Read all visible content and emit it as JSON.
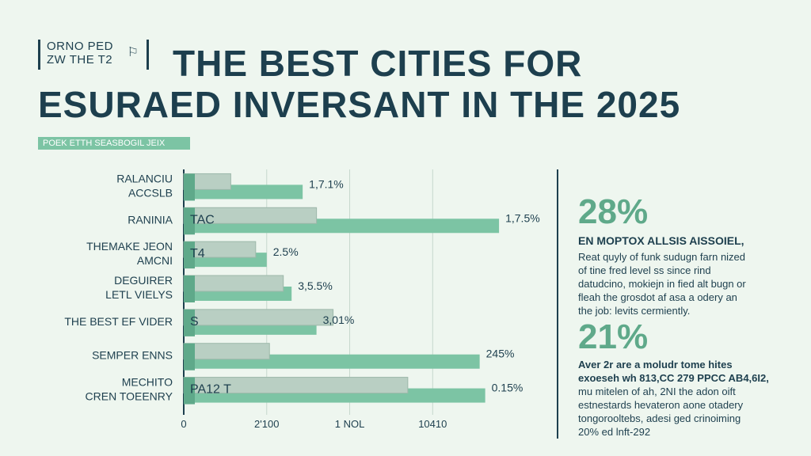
{
  "logo": {
    "line1": "ORNO PED",
    "line2": "ZW THE T2",
    "icon": "flag-icon"
  },
  "header": {
    "title_line1": "THE BEST CITIES FOR",
    "title_line2": "ESURAED INVERSANT IN THE 2025",
    "subtitle": "POEK ETTH SEASBOGIL JEIX"
  },
  "colors": {
    "accent": "#7cc4a4",
    "dark": "#1d3f4e",
    "bar_dark": "#5fa98a",
    "bar_gray": "#b9cfc3"
  },
  "chart_data": {
    "type": "bar",
    "orientation": "horizontal",
    "categories": [
      [
        "RALANCIU",
        "ACCSLB"
      ],
      [
        "RANINIA"
      ],
      [
        "THEMAKE JEON",
        "AMCNI"
      ],
      [
        "DEGUIRER",
        "LETL VIELYS"
      ],
      [
        "THE BEST EF VIDER"
      ],
      [
        "SEMPER ENNS"
      ],
      [
        "MECHITO",
        "CREN TOEENRY"
      ]
    ],
    "series": [
      {
        "values": [
          2150,
          5700,
          1500,
          1950,
          2400,
          5350,
          5450
        ]
      },
      {
        "values": [
          850,
          2400,
          1300,
          1800,
          2700,
          1550,
          4050
        ]
      }
    ],
    "inner_labels": [
      "",
      "TAC",
      "T4",
      "",
      "S",
      "",
      "PA12 T"
    ],
    "value_labels": [
      "1,7.1%",
      "1,7.5%",
      "2.5%",
      "3,5.5%",
      "3,01%",
      "245%",
      "0.15%"
    ],
    "xticks": [
      {
        "value": 0,
        "label": "0"
      },
      {
        "value": 1500,
        "label": "2'100"
      },
      {
        "value": 3000,
        "label": "1 NOL"
      },
      {
        "value": 4500,
        "label": "10410"
      }
    ],
    "xlim": [
      0,
      6300
    ],
    "grid": true
  },
  "side": {
    "stat1": {
      "value": "28%",
      "heading": "EN MOPTOX ALLSIS AISSOIEL,",
      "lines": [
        "Reat quyly of funk sudugn farn nized",
        "of tine fred level ss since rind",
        "datudcino, mokiejn in fied alt bugn or",
        "fleah the grosdot af asa a odery an",
        "the job: levits cermiently."
      ]
    },
    "stat2": {
      "value": "21%",
      "lines": [
        "Aver 2r are a moludr tome hites",
        "exoeseh wh 813,CC 279 PPCC AB4,6I2,",
        "mu mitelen of ah, 2NI the adon oift",
        "estnestards hevateron aone otadery",
        "tongorooltebs, adesi ged crinoiming",
        "20% ed lnft-292"
      ]
    }
  }
}
